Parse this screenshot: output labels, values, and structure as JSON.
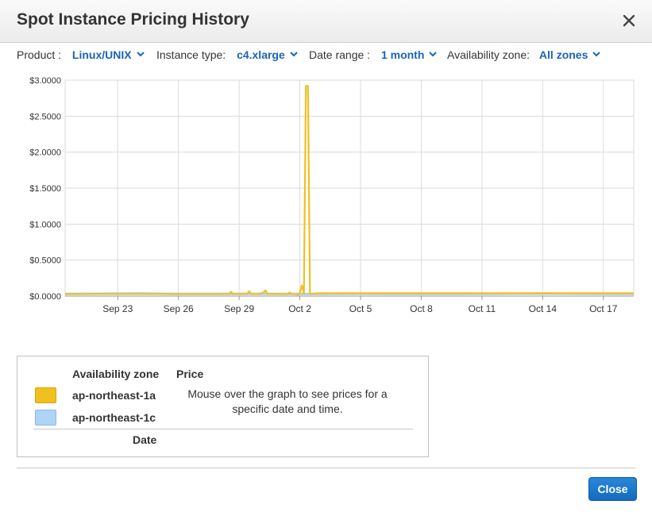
{
  "dialog": {
    "title": "Spot Instance Pricing History",
    "close_icon": "close-icon"
  },
  "filters": {
    "product_label": "Product :",
    "product_value": "Linux/UNIX",
    "instance_label": "Instance type:",
    "instance_value": "c4.xlarge",
    "range_label": "Date range :",
    "range_value": "1 month",
    "zone_label": "Availability zone:",
    "zone_value": "All zones",
    "dropdown_icon": "chevron-down-icon",
    "link_color": "#1a64b8"
  },
  "chart_data": {
    "type": "line",
    "ylim": [
      0,
      3.0
    ],
    "y_ticks": [
      "$3.0000",
      "$2.5000",
      "$2.0000",
      "$1.5000",
      "$1.0000",
      "$0.5000",
      "$0.0000"
    ],
    "x_ticks": [
      "Sep 23",
      "Sep 26",
      "Sep 29",
      "Oct 2",
      "Oct 5",
      "Oct 8",
      "Oct 11",
      "Oct 14",
      "Oct 17"
    ],
    "x_range_days": [
      -2.6,
      25.5
    ],
    "grid": true,
    "series": [
      {
        "name": "ap-northeast-1a",
        "color": "#f0c020",
        "x": [
          -2.6,
          0,
          2,
          4,
          5.5,
          5.6,
          5.7,
          6.0,
          6.4,
          6.5,
          6.6,
          7.0,
          7.2,
          7.3,
          7.4,
          8.4,
          8.5,
          8.6,
          8.8,
          8.9,
          9.0,
          9.1,
          9.2,
          9.3,
          9.4,
          9.5,
          10,
          12,
          15,
          20,
          25.5
        ],
        "y": [
          0.03,
          0.03,
          0.03,
          0.03,
          0.03,
          0.06,
          0.03,
          0.03,
          0.03,
          0.07,
          0.03,
          0.03,
          0.05,
          0.08,
          0.03,
          0.03,
          0.05,
          0.03,
          0.03,
          0.02,
          0.04,
          0.15,
          0.03,
          2.92,
          2.92,
          0.03,
          0.04,
          0.04,
          0.04,
          0.04,
          0.04
        ]
      },
      {
        "name": "ap-northeast-1c",
        "color": "#a8cdf0",
        "x": [
          -2.6,
          1,
          3,
          6,
          9,
          12,
          15,
          18,
          21,
          25.5
        ],
        "y": [
          0.03,
          0.035,
          0.03,
          0.032,
          0.03,
          0.033,
          0.03,
          0.032,
          0.034,
          0.03
        ]
      }
    ]
  },
  "legend": {
    "col_zone": "Availability zone",
    "col_price": "Price",
    "rows": [
      {
        "label": "ap-northeast-1a",
        "color": "#f0c020"
      },
      {
        "label": "ap-northeast-1c",
        "color": "#b0d4f5"
      }
    ],
    "hint": "Mouse over the graph to see prices for a specific date and time.",
    "date_label": "Date"
  },
  "footer": {
    "close_label": "Close"
  }
}
